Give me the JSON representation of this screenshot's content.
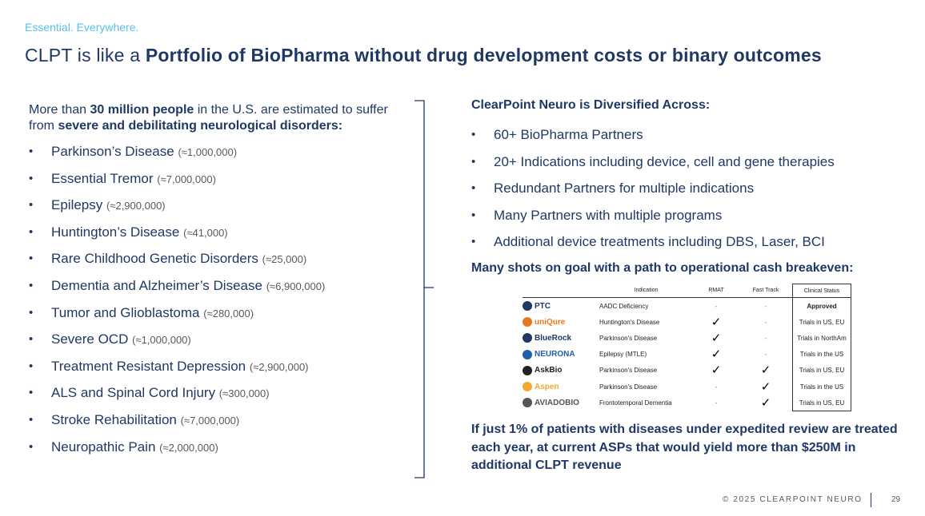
{
  "header": {
    "tagline": "Essential. Everywhere.",
    "title_prefix": "CLPT is like a ",
    "title_bold": "Portfolio of BioPharma without drug development costs or binary outcomes"
  },
  "left": {
    "intro": {
      "t1": "More than ",
      "b1": "30 million people",
      "t2": " in the U.S. are estimated to suffer from ",
      "b2": "severe and debilitating neurological disorders:"
    },
    "disorders": [
      {
        "name": "Parkinson’s Disease",
        "count": "(≈1,000,000)"
      },
      {
        "name": "Essential Tremor",
        "count": "(≈7,000,000)"
      },
      {
        "name": "Epilepsy",
        "count": "(≈2,900,000)"
      },
      {
        "name": "Huntington’s Disease",
        "count": "(≈41,000)"
      },
      {
        "name": "Rare Childhood Genetic Disorders",
        "count": "(≈25,000)"
      },
      {
        "name": "Dementia and Alzheimer’s Disease",
        "count": "(≈6,900,000)"
      },
      {
        "name": "Tumor and Glioblastoma",
        "count": "(≈280,000)"
      },
      {
        "name": "Severe OCD",
        "count": "(≈1,000,000)"
      },
      {
        "name": "Treatment Resistant Depression",
        "count": "(≈2,900,000)"
      },
      {
        "name": "ALS and Spinal Cord Injury",
        "count": "(≈300,000)"
      },
      {
        "name": "Stroke Rehabilitation",
        "count": "(≈7,000,000)"
      },
      {
        "name": "Neuropathic Pain",
        "count": "(≈2,000,000)"
      }
    ]
  },
  "right": {
    "heading": "ClearPoint Neuro is Diversified Across:",
    "items": [
      "60+ BioPharma Partners",
      "20+ Indications including device, cell and gene therapies",
      "Redundant Partners for multiple indications",
      "Many Partners with multiple programs",
      "Additional device treatments including DBS, Laser, BCI"
    ],
    "heading2": "Many shots on goal with a path to operational cash breakeven:",
    "table": {
      "headers": {
        "indication": "Indication",
        "rmat": "RMAT",
        "fast_track": "Fast Track",
        "status": "Clinical Status"
      },
      "check": "✓",
      "dash": "-",
      "rows": [
        {
          "logo": "PTC",
          "logo_color": "#1f3864",
          "indication": "AADC Deficiency",
          "rmat": "-",
          "fast_track": "-",
          "status": "Approved"
        },
        {
          "logo": "uniQure",
          "logo_color": "#e87722",
          "indication": "Huntington's Disease",
          "rmat": "✓",
          "fast_track": "-",
          "status": "Trials in US, EU"
        },
        {
          "logo": "BlueRock",
          "logo_color": "#1f3864",
          "indication": "Parkinson's Disease",
          "rmat": "✓",
          "fast_track": "-",
          "status": "Trials in NorthAm"
        },
        {
          "logo": "NEURONA",
          "logo_color": "#1f5fa8",
          "indication": "Epilepsy (MTLE)",
          "rmat": "✓",
          "fast_track": "-",
          "status": "Trials in the US"
        },
        {
          "logo": "AskBio",
          "logo_color": "#222222",
          "indication": "Parkinson's Disease",
          "rmat": "✓",
          "fast_track": "✓",
          "status": "Trials in US, EU"
        },
        {
          "logo": "Aspen",
          "logo_color": "#f0a830",
          "indication": "Parkinson's Disease",
          "rmat": "-",
          "fast_track": "✓",
          "status": "Trials in the US"
        },
        {
          "logo": "AVIADOBIO",
          "logo_color": "#555555",
          "indication": "Frontotemporal Dementia",
          "rmat": "-",
          "fast_track": "✓",
          "status": "Trials in US, EU"
        }
      ]
    },
    "conclusion": "If just 1% of patients with diseases under expedited review are treated each year, at current ASPs that would yield more than $250M in additional CLPT revenue"
  },
  "footer": {
    "copyright": "© 2025 CLEARPOINT NEURO",
    "page": "29"
  }
}
